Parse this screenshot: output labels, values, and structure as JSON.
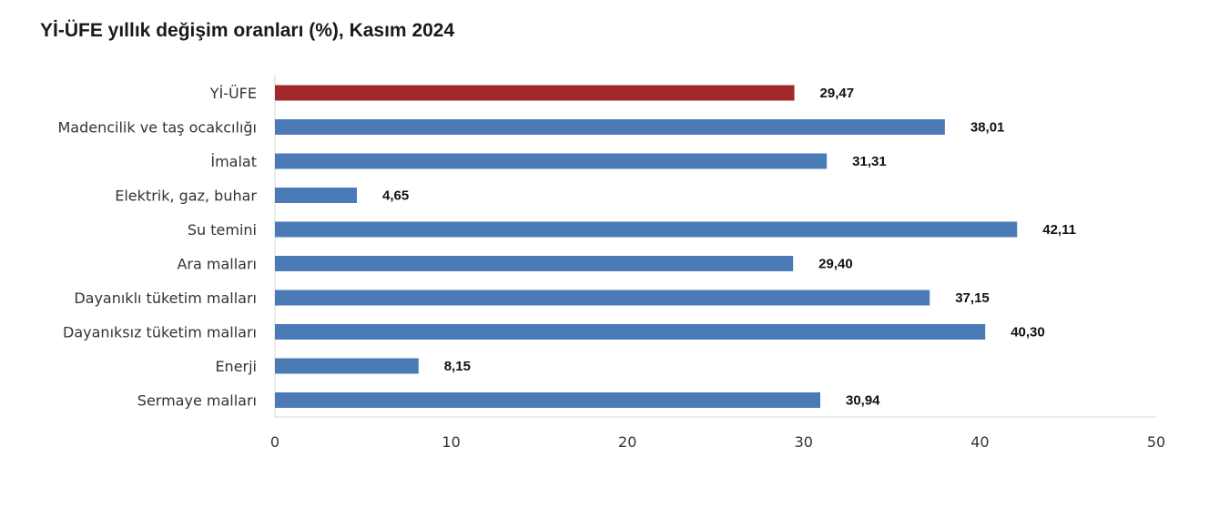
{
  "chart_data": {
    "type": "bar",
    "orientation": "horizontal",
    "title": "Yİ-ÜFE yıllık değişim oranları (%), Kasım 2024",
    "categories": [
      "Yİ-ÜFE",
      "Madencilik ve taş ocakcılığı",
      "İmalat",
      "Elektrik, gaz, buhar",
      "Su temini",
      "Ara malları",
      "Dayanıklı tüketim malları",
      "Dayanıksız tüketim malları",
      "Enerji",
      "Sermaye malları"
    ],
    "values": [
      29.47,
      38.01,
      31.31,
      4.65,
      42.11,
      29.4,
      37.15,
      40.3,
      8.15,
      30.94
    ],
    "value_labels": [
      "29,47",
      "38,01",
      "31,31",
      "4,65",
      "42,11",
      "29,40",
      "37,15",
      "40,30",
      "8,15",
      "30,94"
    ],
    "xlim": [
      0,
      50
    ],
    "xticks": [
      "0",
      "10",
      "20",
      "30",
      "40",
      "50"
    ],
    "xlabel": "",
    "ylabel": "",
    "grid": false,
    "colors": {
      "highlight": "#a2272b",
      "default": "#4a7bb7",
      "axis": "#d9d9d9"
    },
    "highlight_index": 0
  }
}
